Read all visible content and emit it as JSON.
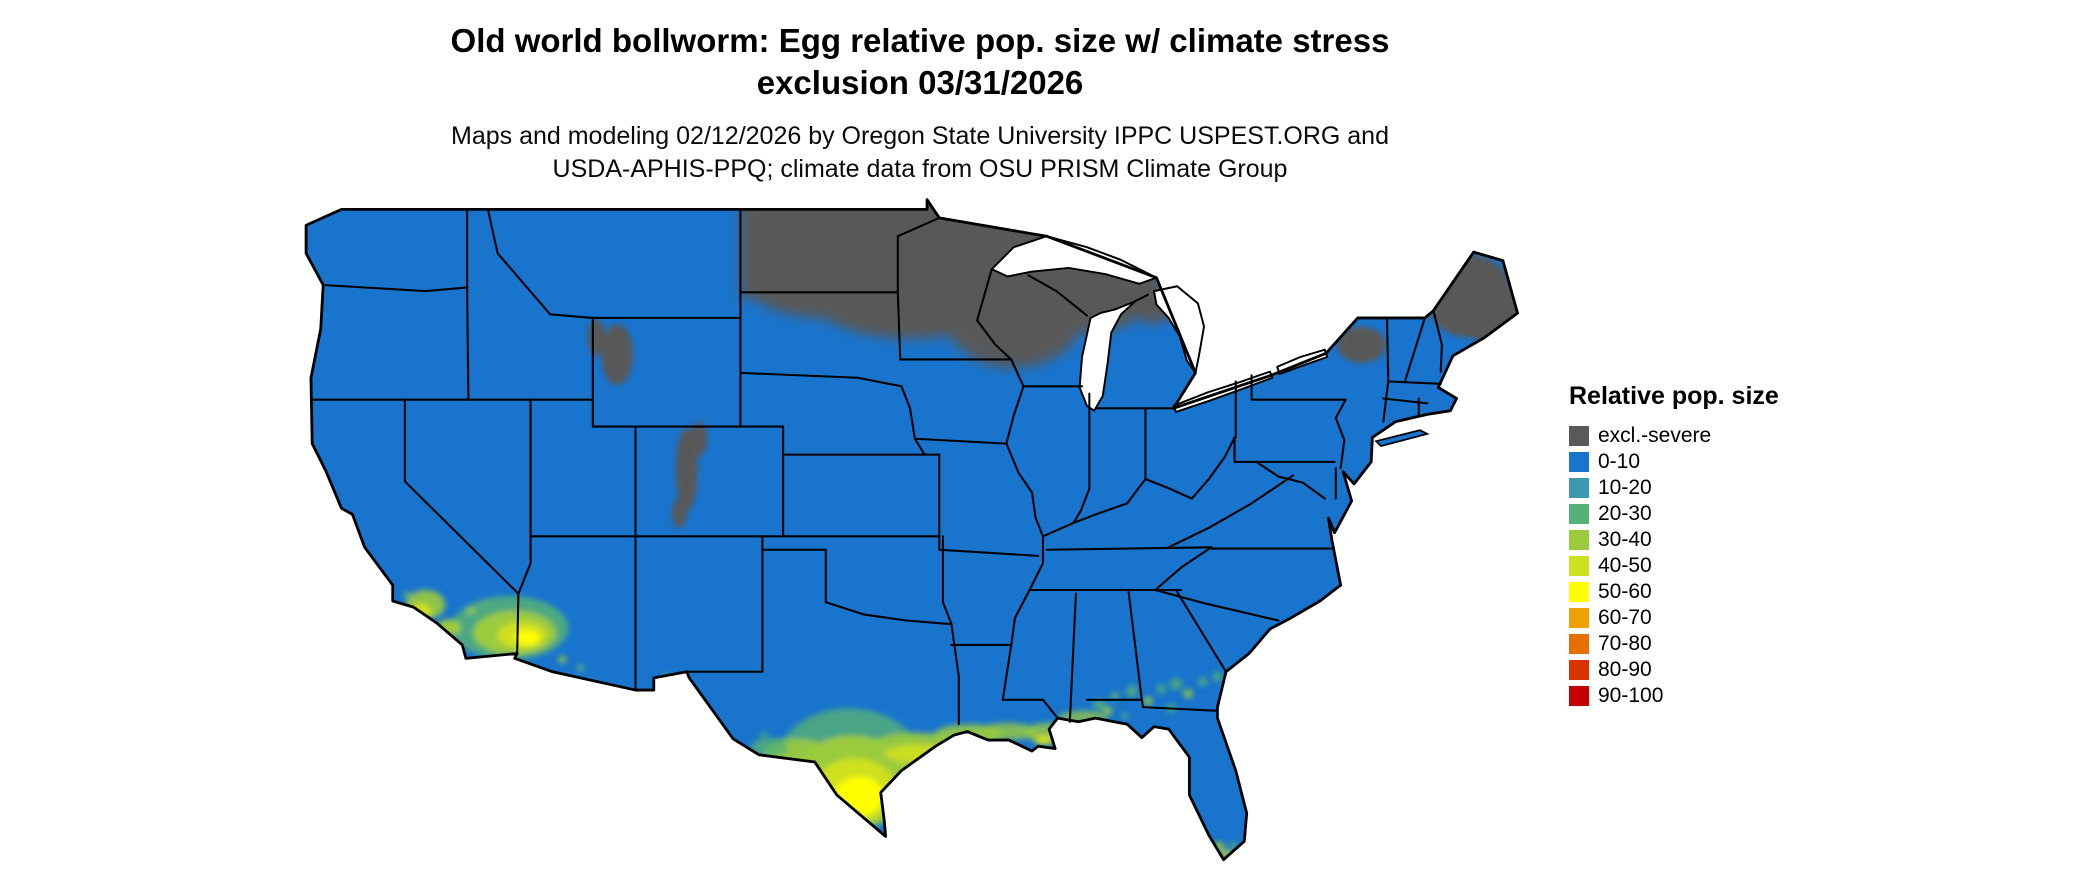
{
  "header": {
    "title_line1": "Old world bollworm: Egg relative pop. size w/ climate stress",
    "title_line2": "exclusion 03/31/2026",
    "subtitle_line1": "Maps and modeling 02/12/2026 by Oregon State University IPPC USPEST.ORG and",
    "subtitle_line2": "USDA-APHIS-PPQ; climate data from OSU PRISM Climate Group"
  },
  "legend": {
    "title": "Relative pop. size",
    "entries": [
      {
        "label": "excl.-severe",
        "color": "#595959"
      },
      {
        "label": "0-10",
        "color": "#1874CD"
      },
      {
        "label": "10-20",
        "color": "#3C99B2"
      },
      {
        "label": "20-30",
        "color": "#56B176"
      },
      {
        "label": "30-40",
        "color": "#9BCB3C"
      },
      {
        "label": "40-50",
        "color": "#CFE01F"
      },
      {
        "label": "50-60",
        "color": "#FFFF00"
      },
      {
        "label": "60-70",
        "color": "#F0A000"
      },
      {
        "label": "70-80",
        "color": "#E76F00"
      },
      {
        "label": "80-90",
        "color": "#DB3200"
      },
      {
        "label": "90-100",
        "color": "#C40000"
      }
    ]
  },
  "map": {
    "region": "Contiguous United States",
    "base_value_class": "0-10",
    "exclusion_class": "excl.-severe",
    "outline_color": "#000000",
    "background_color": "#ffffff"
  }
}
